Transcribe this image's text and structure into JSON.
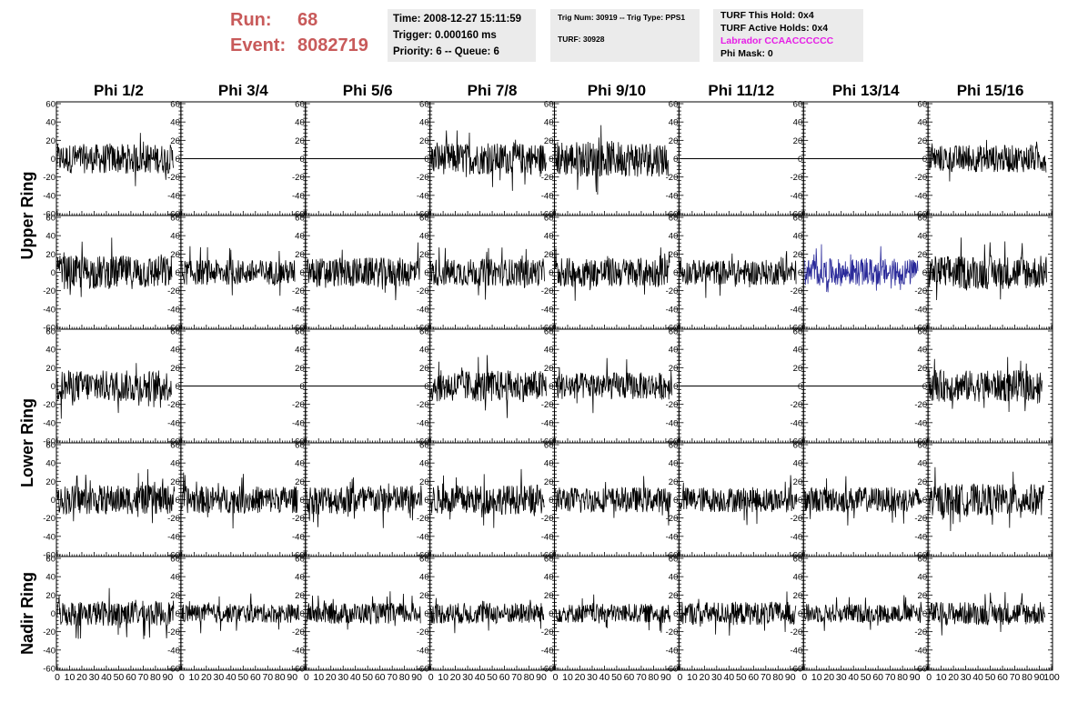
{
  "header": {
    "run_label": "Run:",
    "run_value": "68",
    "event_label": "Event:",
    "event_value": "8082719",
    "time_line": "Time: 2008-12-27 15:11:59",
    "trigger_line": "Trigger: 0.000160 ms",
    "priority_line": "Priority: 6 -- Queue: 6",
    "trig_line": "Trig Num: 30919 -- Trig Type: PPS1",
    "turf_line": "TURF: 30928",
    "turf_hold_line": "TURF This Hold: 0x4",
    "turf_active_line": "TURF Active Holds: 0x4",
    "labrador_line": "Labrador CCAACCCCCC",
    "phi_mask_line": "Phi Mask: 0",
    "labrador_color": "#e61ee6",
    "run_color": "#c85a5a"
  },
  "chart_data": {
    "type": "line",
    "columns": [
      "Phi 1/2",
      "Phi 3/4",
      "Phi 5/6",
      "Phi 7/8",
      "Phi 9/10",
      "Phi 11/12",
      "Phi 13/14",
      "Phi 15/16"
    ],
    "rows": [
      {
        "ring": "Upper Ring",
        "flat": [
          false,
          true,
          true,
          false,
          false,
          true,
          true,
          false
        ],
        "highlight": [
          false,
          false,
          false,
          false,
          false,
          false,
          false,
          false
        ],
        "amp": [
          14,
          0,
          0,
          15,
          17,
          0,
          0,
          13
        ]
      },
      {
        "ring": "Upper Ring",
        "flat": [
          false,
          false,
          false,
          false,
          false,
          false,
          false,
          false
        ],
        "highlight": [
          false,
          false,
          false,
          false,
          false,
          false,
          true,
          false
        ],
        "amp": [
          16,
          12,
          14,
          13,
          14,
          12,
          13,
          16
        ]
      },
      {
        "ring": "Lower Ring",
        "flat": [
          false,
          true,
          true,
          false,
          false,
          true,
          true,
          false
        ],
        "highlight": [
          false,
          false,
          false,
          false,
          false,
          false,
          false,
          false
        ],
        "amp": [
          15,
          0,
          0,
          15,
          13,
          0,
          0,
          15
        ]
      },
      {
        "ring": "Lower Ring",
        "flat": [
          false,
          false,
          false,
          false,
          false,
          false,
          false,
          false
        ],
        "highlight": [
          false,
          false,
          false,
          false,
          false,
          false,
          false,
          false
        ],
        "amp": [
          14,
          13,
          14,
          14,
          12,
          12,
          12,
          15
        ]
      },
      {
        "ring": "Nadir Ring",
        "flat": [
          false,
          false,
          false,
          false,
          false,
          false,
          false,
          false
        ],
        "highlight": [
          false,
          false,
          false,
          false,
          false,
          false,
          false,
          false
        ],
        "amp": [
          12,
          9,
          10,
          10,
          9,
          11,
          9,
          11
        ]
      }
    ],
    "ring_labels": [
      "Upper Ring",
      "Lower Ring",
      "Nadir Ring"
    ],
    "xlim": [
      0,
      100
    ],
    "ylim": [
      -60,
      60
    ],
    "y_ticks": [
      "60",
      "40",
      "20",
      "0",
      "-20",
      "-40",
      "-60"
    ],
    "x_ticks": [
      "0",
      "10",
      "20",
      "30",
      "40",
      "50",
      "60",
      "70",
      "80",
      "90",
      "100"
    ],
    "trace_color": "#000000",
    "highlight_color": "#2a2a9a",
    "grid": false
  }
}
